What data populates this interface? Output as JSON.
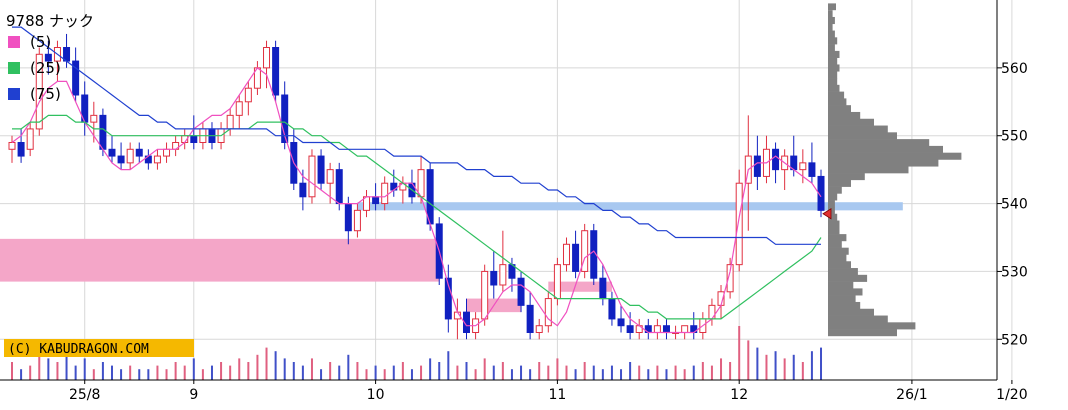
{
  "chart_data": {
    "type": "candlestick",
    "title": "9788 ナック",
    "copyright": "(C) KABUDRAGON.COM",
    "legend": [
      {
        "label": "(5)",
        "color": "#f050c0"
      },
      {
        "label": "(25)",
        "color": "#30c060"
      },
      {
        "label": "(75)",
        "color": "#2040d0"
      }
    ],
    "x_tick_labels": [
      {
        "label": "25/8",
        "index": 8
      },
      {
        "label": "9",
        "index": 20
      },
      {
        "label": "10",
        "index": 40
      },
      {
        "label": "11",
        "index": 60
      },
      {
        "label": "12",
        "index": 80
      },
      {
        "label": "26/1",
        "index": 99
      },
      {
        "label": "1/20",
        "index": 110
      }
    ],
    "y_ticks": [
      520,
      530,
      540,
      550,
      560
    ],
    "ylim": [
      514,
      570
    ],
    "series": [
      {
        "name": "(5)",
        "color": "#f050c0",
        "values": [
          549,
          550,
          552,
          555,
          557,
          558,
          558,
          555,
          552,
          550,
          548,
          546,
          545,
          545,
          546,
          547,
          548,
          548,
          548,
          549,
          551,
          552,
          553,
          553,
          554,
          556,
          558,
          560,
          559,
          555,
          550,
          546,
          544,
          543,
          542,
          541,
          540,
          540,
          540,
          541,
          541,
          541,
          542,
          543,
          543,
          541,
          537,
          533,
          528,
          524,
          522,
          522,
          523,
          525,
          527,
          528,
          528,
          527,
          525,
          523,
          522,
          524,
          528,
          532,
          533,
          531,
          528,
          525,
          523,
          522,
          521,
          521,
          521,
          521,
          521,
          521,
          522,
          523,
          525,
          530,
          538,
          545,
          546,
          546,
          547,
          546,
          545,
          544,
          543,
          541
        ]
      },
      {
        "name": "(25)",
        "color": "#30c060",
        "values": [
          551,
          551,
          552,
          552,
          553,
          553,
          553,
          552,
          552,
          551,
          551,
          550,
          550,
          550,
          550,
          550,
          550,
          550,
          550,
          550,
          550,
          550,
          550,
          550,
          551,
          551,
          551,
          552,
          552,
          552,
          552,
          551,
          551,
          550,
          550,
          549,
          549,
          548,
          547,
          547,
          546,
          545,
          544,
          543,
          542,
          541,
          540,
          539,
          538,
          537,
          536,
          535,
          534,
          533,
          532,
          531,
          530,
          529,
          528,
          527,
          526,
          526,
          526,
          526,
          526,
          526,
          526,
          526,
          525,
          525,
          524,
          524,
          523,
          523,
          523,
          523,
          523,
          523,
          523,
          524,
          525,
          526,
          527,
          528,
          529,
          530,
          531,
          532,
          533,
          535
        ]
      },
      {
        "name": "(75)",
        "color": "#2040d0",
        "values": [
          566,
          566,
          565,
          564,
          563,
          562,
          561,
          560,
          559,
          558,
          557,
          556,
          555,
          554,
          553,
          553,
          552,
          552,
          551,
          551,
          551,
          551,
          551,
          551,
          551,
          551,
          551,
          551,
          551,
          550,
          550,
          550,
          549,
          549,
          549,
          549,
          548,
          548,
          548,
          548,
          548,
          548,
          547,
          547,
          547,
          547,
          546,
          546,
          546,
          546,
          545,
          545,
          545,
          544,
          544,
          544,
          543,
          543,
          543,
          542,
          542,
          541,
          541,
          540,
          540,
          539,
          539,
          538,
          538,
          537,
          537,
          536,
          536,
          535,
          535,
          535,
          535,
          535,
          535,
          535,
          535,
          535,
          535,
          535,
          534,
          534,
          534,
          534,
          534,
          534
        ]
      }
    ],
    "candles": [
      {
        "o": 548,
        "h": 550,
        "l": 546,
        "c": 549
      },
      {
        "o": 549,
        "h": 551,
        "l": 546,
        "c": 547
      },
      {
        "o": 548,
        "h": 552,
        "l": 547,
        "c": 551
      },
      {
        "o": 551,
        "h": 563,
        "l": 550,
        "c": 562
      },
      {
        "o": 562,
        "h": 564,
        "l": 559,
        "c": 561
      },
      {
        "o": 561,
        "h": 564,
        "l": 558,
        "c": 563
      },
      {
        "o": 563,
        "h": 565,
        "l": 560,
        "c": 561
      },
      {
        "o": 561,
        "h": 563,
        "l": 555,
        "c": 556
      },
      {
        "o": 556,
        "h": 558,
        "l": 550,
        "c": 552
      },
      {
        "o": 552,
        "h": 555,
        "l": 549,
        "c": 553
      },
      {
        "o": 553,
        "h": 554,
        "l": 547,
        "c": 548
      },
      {
        "o": 548,
        "h": 550,
        "l": 546,
        "c": 547
      },
      {
        "o": 547,
        "h": 549,
        "l": 545,
        "c": 546
      },
      {
        "o": 546,
        "h": 549,
        "l": 545,
        "c": 548
      },
      {
        "o": 548,
        "h": 549,
        "l": 546,
        "c": 547
      },
      {
        "o": 547,
        "h": 548,
        "l": 545,
        "c": 546
      },
      {
        "o": 546,
        "h": 548,
        "l": 545,
        "c": 547
      },
      {
        "o": 547,
        "h": 549,
        "l": 546,
        "c": 548
      },
      {
        "o": 548,
        "h": 550,
        "l": 547,
        "c": 549
      },
      {
        "o": 549,
        "h": 551,
        "l": 548,
        "c": 550
      },
      {
        "o": 550,
        "h": 553,
        "l": 548,
        "c": 549
      },
      {
        "o": 549,
        "h": 552,
        "l": 548,
        "c": 551
      },
      {
        "o": 551,
        "h": 552,
        "l": 548,
        "c": 549
      },
      {
        "o": 549,
        "h": 552,
        "l": 548,
        "c": 551
      },
      {
        "o": 551,
        "h": 554,
        "l": 550,
        "c": 553
      },
      {
        "o": 553,
        "h": 556,
        "l": 551,
        "c": 555
      },
      {
        "o": 555,
        "h": 558,
        "l": 553,
        "c": 557
      },
      {
        "o": 557,
        "h": 561,
        "l": 556,
        "c": 560
      },
      {
        "o": 560,
        "h": 564,
        "l": 557,
        "c": 563
      },
      {
        "o": 563,
        "h": 564,
        "l": 555,
        "c": 556
      },
      {
        "o": 556,
        "h": 558,
        "l": 548,
        "c": 549
      },
      {
        "o": 549,
        "h": 551,
        "l": 542,
        "c": 543
      },
      {
        "o": 543,
        "h": 545,
        "l": 539,
        "c": 541
      },
      {
        "o": 541,
        "h": 548,
        "l": 540,
        "c": 547
      },
      {
        "o": 547,
        "h": 548,
        "l": 542,
        "c": 543
      },
      {
        "o": 543,
        "h": 546,
        "l": 540,
        "c": 545
      },
      {
        "o": 545,
        "h": 546,
        "l": 539,
        "c": 540
      },
      {
        "o": 540,
        "h": 541,
        "l": 534,
        "c": 536
      },
      {
        "o": 536,
        "h": 540,
        "l": 535,
        "c": 539
      },
      {
        "o": 539,
        "h": 542,
        "l": 538,
        "c": 541
      },
      {
        "o": 541,
        "h": 543,
        "l": 539,
        "c": 540
      },
      {
        "o": 540,
        "h": 544,
        "l": 539,
        "c": 543
      },
      {
        "o": 543,
        "h": 545,
        "l": 541,
        "c": 542
      },
      {
        "o": 542,
        "h": 544,
        "l": 540,
        "c": 543
      },
      {
        "o": 543,
        "h": 545,
        "l": 540,
        "c": 541
      },
      {
        "o": 541,
        "h": 547,
        "l": 540,
        "c": 545
      },
      {
        "o": 545,
        "h": 546,
        "l": 536,
        "c": 537
      },
      {
        "o": 537,
        "h": 538,
        "l": 528,
        "c": 529
      },
      {
        "o": 529,
        "h": 531,
        "l": 521,
        "c": 523
      },
      {
        "o": 523,
        "h": 526,
        "l": 520,
        "c": 524
      },
      {
        "o": 524,
        "h": 526,
        "l": 520,
        "c": 521
      },
      {
        "o": 521,
        "h": 524,
        "l": 520,
        "c": 523
      },
      {
        "o": 523,
        "h": 531,
        "l": 522,
        "c": 530
      },
      {
        "o": 530,
        "h": 533,
        "l": 526,
        "c": 528
      },
      {
        "o": 528,
        "h": 536,
        "l": 527,
        "c": 531
      },
      {
        "o": 531,
        "h": 532,
        "l": 527,
        "c": 529
      },
      {
        "o": 529,
        "h": 530,
        "l": 524,
        "c": 525
      },
      {
        "o": 525,
        "h": 527,
        "l": 520,
        "c": 521
      },
      {
        "o": 521,
        "h": 523,
        "l": 520,
        "c": 522
      },
      {
        "o": 522,
        "h": 527,
        "l": 521,
        "c": 526
      },
      {
        "o": 526,
        "h": 532,
        "l": 525,
        "c": 531
      },
      {
        "o": 531,
        "h": 535,
        "l": 530,
        "c": 534
      },
      {
        "o": 534,
        "h": 536,
        "l": 529,
        "c": 530
      },
      {
        "o": 530,
        "h": 537,
        "l": 529,
        "c": 536
      },
      {
        "o": 536,
        "h": 537,
        "l": 528,
        "c": 529
      },
      {
        "o": 529,
        "h": 531,
        "l": 525,
        "c": 526
      },
      {
        "o": 526,
        "h": 527,
        "l": 522,
        "c": 523
      },
      {
        "o": 523,
        "h": 525,
        "l": 521,
        "c": 522
      },
      {
        "o": 522,
        "h": 524,
        "l": 520,
        "c": 521
      },
      {
        "o": 521,
        "h": 523,
        "l": 520,
        "c": 522
      },
      {
        "o": 522,
        "h": 523,
        "l": 520,
        "c": 521
      },
      {
        "o": 521,
        "h": 523,
        "l": 520,
        "c": 522
      },
      {
        "o": 522,
        "h": 523,
        "l": 520,
        "c": 521
      },
      {
        "o": 521,
        "h": 522,
        "l": 520,
        "c": 521
      },
      {
        "o": 521,
        "h": 522,
        "l": 520,
        "c": 522
      },
      {
        "o": 522,
        "h": 524,
        "l": 520,
        "c": 521
      },
      {
        "o": 521,
        "h": 524,
        "l": 520,
        "c": 523
      },
      {
        "o": 523,
        "h": 526,
        "l": 522,
        "c": 525
      },
      {
        "o": 525,
        "h": 528,
        "l": 523,
        "c": 527
      },
      {
        "o": 527,
        "h": 532,
        "l": 526,
        "c": 531
      },
      {
        "o": 531,
        "h": 545,
        "l": 530,
        "c": 543
      },
      {
        "o": 543,
        "h": 553,
        "l": 536,
        "c": 547
      },
      {
        "o": 547,
        "h": 550,
        "l": 542,
        "c": 544
      },
      {
        "o": 544,
        "h": 550,
        "l": 543,
        "c": 548
      },
      {
        "o": 548,
        "h": 549,
        "l": 543,
        "c": 545
      },
      {
        "o": 545,
        "h": 548,
        "l": 542,
        "c": 547
      },
      {
        "o": 547,
        "h": 550,
        "l": 544,
        "c": 545
      },
      {
        "o": 545,
        "h": 548,
        "l": 543,
        "c": 546
      },
      {
        "o": 546,
        "h": 549,
        "l": 543,
        "c": 544
      },
      {
        "o": 544,
        "h": 545,
        "l": 538,
        "c": 539
      }
    ],
    "volume": [
      5,
      3,
      4,
      8,
      6,
      5,
      7,
      4,
      6,
      3,
      5,
      4,
      3,
      4,
      3,
      3,
      4,
      3,
      5,
      4,
      6,
      3,
      4,
      5,
      4,
      6,
      5,
      7,
      9,
      8,
      6,
      5,
      4,
      6,
      3,
      5,
      4,
      7,
      5,
      3,
      4,
      3,
      4,
      5,
      3,
      4,
      6,
      5,
      8,
      4,
      5,
      3,
      6,
      4,
      5,
      3,
      4,
      3,
      5,
      4,
      6,
      4,
      3,
      5,
      4,
      3,
      4,
      3,
      5,
      4,
      3,
      4,
      3,
      4,
      3,
      4,
      5,
      4,
      6,
      5,
      15,
      11,
      9,
      7,
      8,
      6,
      7,
      5,
      8,
      9
    ],
    "current_price": 538.5,
    "volume_profile": [
      {
        "price": 521,
        "size": 30
      },
      {
        "price": 522,
        "size": 38
      },
      {
        "price": 523,
        "size": 26
      },
      {
        "price": 524,
        "size": 20
      },
      {
        "price": 525,
        "size": 14
      },
      {
        "price": 526,
        "size": 12
      },
      {
        "price": 527,
        "size": 15
      },
      {
        "price": 528,
        "size": 11
      },
      {
        "price": 529,
        "size": 17
      },
      {
        "price": 530,
        "size": 13
      },
      {
        "price": 531,
        "size": 10
      },
      {
        "price": 532,
        "size": 8
      },
      {
        "price": 533,
        "size": 9
      },
      {
        "price": 534,
        "size": 6
      },
      {
        "price": 535,
        "size": 8
      },
      {
        "price": 536,
        "size": 5
      },
      {
        "price": 537,
        "size": 5
      },
      {
        "price": 538,
        "size": 4
      },
      {
        "price": 539,
        "size": 3
      },
      {
        "price": 540,
        "size": 3
      },
      {
        "price": 541,
        "size": 4
      },
      {
        "price": 542,
        "size": 6
      },
      {
        "price": 543,
        "size": 10
      },
      {
        "price": 544,
        "size": 16
      },
      {
        "price": 545,
        "size": 35
      },
      {
        "price": 546,
        "size": 48
      },
      {
        "price": 547,
        "size": 58
      },
      {
        "price": 548,
        "size": 50
      },
      {
        "price": 549,
        "size": 44
      },
      {
        "price": 550,
        "size": 30
      },
      {
        "price": 551,
        "size": 26
      },
      {
        "price": 552,
        "size": 20
      },
      {
        "price": 553,
        "size": 14
      },
      {
        "price": 554,
        "size": 10
      },
      {
        "price": 555,
        "size": 8
      },
      {
        "price": 556,
        "size": 7
      },
      {
        "price": 557,
        "size": 5
      },
      {
        "price": 558,
        "size": 4
      },
      {
        "price": 559,
        "size": 4
      },
      {
        "price": 560,
        "size": 5
      },
      {
        "price": 561,
        "size": 4
      },
      {
        "price": 562,
        "size": 5
      },
      {
        "price": 563,
        "size": 3
      },
      {
        "price": 564,
        "size": 4
      },
      {
        "price": 565,
        "size": 3
      },
      {
        "price": 566,
        "size": 2
      },
      {
        "price": 567,
        "size": 3
      },
      {
        "price": 568,
        "size": 2
      }
    ],
    "zones": [
      {
        "from_index": -3,
        "to_index": 47,
        "low": 528.5,
        "high": 534.8,
        "color": "#f4a6c8"
      },
      {
        "from_index": 50,
        "to_index": 56,
        "low": 524,
        "high": 526,
        "color": "#f4a6c8"
      },
      {
        "from_index": 59,
        "to_index": 66,
        "low": 527,
        "high": 528.5,
        "color": "#f4a6c8"
      },
      {
        "from_index": 38,
        "to_index": 98,
        "low": 539,
        "high": 540.2,
        "color": "#a8c8f0"
      }
    ]
  }
}
